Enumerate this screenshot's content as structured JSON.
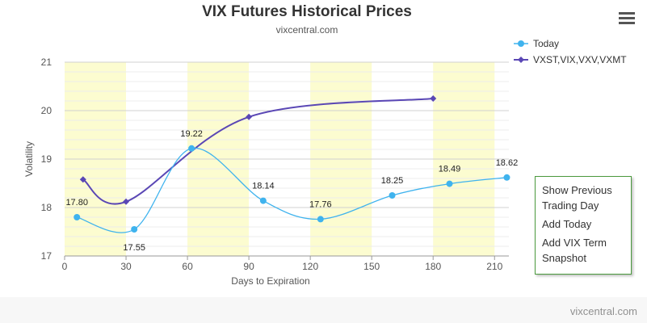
{
  "header": {
    "title": "VIX Futures Historical Prices",
    "subtitle": "vixcentral.com"
  },
  "context_menu": {
    "items": [
      "Show Previous Trading Day",
      "Add Today",
      "Add VIX Term Snapshot"
    ]
  },
  "credit": "vixcentral.com",
  "colors": {
    "today": "#3fb3ee",
    "term": "#5a47b5",
    "band": "#fcfcd0",
    "menu_border": "#4b9a3e"
  },
  "chart_data": {
    "type": "line",
    "title": "VIX Futures Historical Prices",
    "subtitle": "vixcentral.com",
    "xlabel": "Days to Expiration",
    "ylabel": "Volatility",
    "xlim": [
      0,
      217
    ],
    "ylim": [
      17,
      21
    ],
    "x_ticks": [
      0,
      30,
      60,
      90,
      120,
      150,
      180,
      210
    ],
    "y_ticks": [
      17,
      18,
      19,
      20,
      21
    ],
    "shaded_bands_x": [
      [
        0,
        30
      ],
      [
        60,
        90
      ],
      [
        120,
        150
      ],
      [
        180,
        210
      ]
    ],
    "grid": true,
    "legend_position": "top-right",
    "series": [
      {
        "name": "Today",
        "x": [
          6,
          34,
          62,
          97,
          125,
          160,
          188,
          216
        ],
        "values": [
          17.8,
          17.55,
          19.22,
          18.14,
          17.76,
          18.25,
          18.49,
          18.62
        ],
        "labels": [
          "17.80",
          "17.55",
          "19.22",
          "18.14",
          "17.76",
          "18.25",
          "18.49",
          "18.62"
        ],
        "marker": "circle"
      },
      {
        "name": "VXST,VIX,VXV,VXMT",
        "x": [
          9,
          30,
          90,
          180
        ],
        "values": [
          18.58,
          18.12,
          19.87,
          20.25
        ],
        "marker": "diamond"
      }
    ]
  }
}
